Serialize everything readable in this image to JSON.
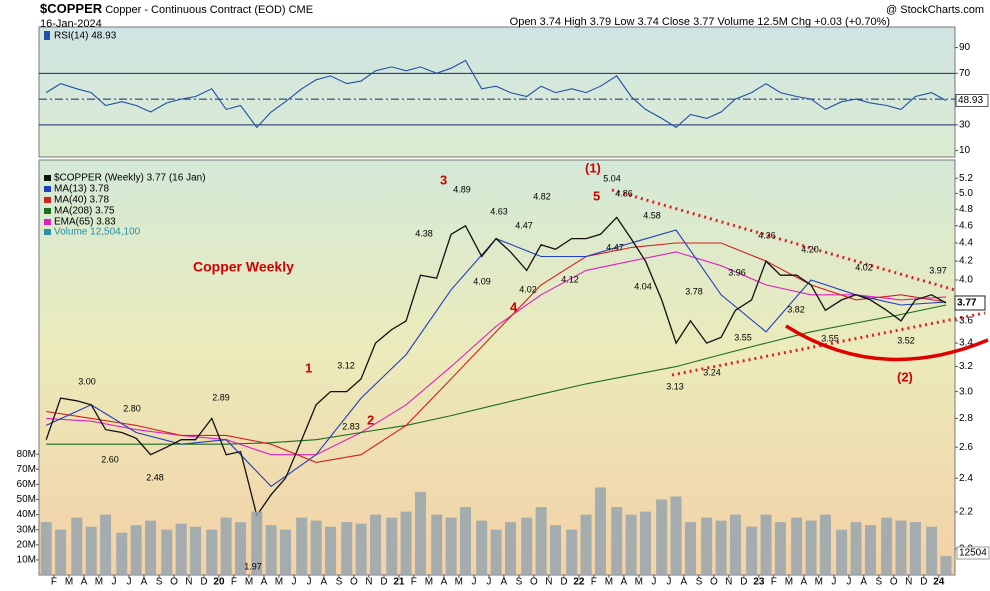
{
  "header": {
    "symbol": "$COPPER",
    "name": "Copper - Continuous Contract (EOD) CME",
    "date": "16-Jan-2024",
    "quote": "Open 3.74 High 3.79 Low 3.74 Close 3.77 Volume 12.5M Chg +0.03 (+0.70%)",
    "credit": "@ StockCharts.com"
  },
  "chart_data": [
    {
      "type": "line",
      "title": "RSI(14) 48.93",
      "last_label": "48.93",
      "xlim": [
        2019.0,
        2024.09
      ],
      "ylim": [
        5,
        106
      ],
      "yticks": [
        10,
        30,
        50,
        70,
        90
      ],
      "levels": [
        70,
        50,
        30
      ],
      "x": [
        2019.04,
        2019.12,
        2019.21,
        2019.29,
        2019.37,
        2019.46,
        2019.54,
        2019.62,
        2019.71,
        2019.79,
        2019.87,
        2019.96,
        2020.04,
        2020.12,
        2020.21,
        2020.29,
        2020.37,
        2020.46,
        2020.54,
        2020.62,
        2020.71,
        2020.79,
        2020.87,
        2020.96,
        2021.04,
        2021.12,
        2021.21,
        2021.29,
        2021.37,
        2021.46,
        2021.54,
        2021.62,
        2021.71,
        2021.79,
        2021.87,
        2021.96,
        2022.04,
        2022.12,
        2022.21,
        2022.29,
        2022.37,
        2022.46,
        2022.54,
        2022.62,
        2022.71,
        2022.79,
        2022.87,
        2022.96,
        2023.04,
        2023.12,
        2023.21,
        2023.29,
        2023.37,
        2023.46,
        2023.54,
        2023.62,
        2023.71,
        2023.79,
        2023.87,
        2023.96,
        2024.04
      ],
      "series": [
        {
          "color": "#1f4fa8",
          "values": [
            55,
            62,
            58,
            55,
            45,
            48,
            45,
            40,
            47,
            50,
            52,
            58,
            42,
            45,
            28,
            40,
            48,
            58,
            65,
            68,
            62,
            64,
            72,
            75,
            72,
            75,
            70,
            74,
            80,
            58,
            60,
            55,
            52,
            60,
            55,
            58,
            55,
            60,
            68,
            52,
            42,
            35,
            28,
            38,
            35,
            40,
            50,
            55,
            62,
            55,
            52,
            50,
            42,
            48,
            50,
            47,
            45,
            42,
            52,
            55,
            48.93
          ]
        }
      ]
    },
    {
      "type": "line",
      "title": "Copper Weekly",
      "log_scale": true,
      "last_label": "3.77",
      "xlim": [
        2019.0,
        2024.09
      ],
      "ylim": [
        1.87,
        5.45
      ],
      "yticks": [
        {
          "value": 2,
          "label": "2.0"
        },
        2.2,
        2.4,
        2.6,
        2.8,
        {
          "value": 3,
          "label": "3.0"
        },
        3.2,
        3.4,
        3.6,
        3.8,
        {
          "value": 4,
          "label": "4.0"
        },
        4.2,
        4.4,
        4.6,
        4.8,
        {
          "value": 5,
          "label": "5.0"
        },
        5.2
      ],
      "series": [
        {
          "name": "$COPPER (Weekly) 3.77 (16 Jan)",
          "color": "#111111",
          "x": [
            2019.04,
            2019.12,
            2019.21,
            2019.29,
            2019.37,
            2019.46,
            2019.54,
            2019.62,
            2019.71,
            2019.79,
            2019.87,
            2019.96,
            2020.04,
            2020.12,
            2020.21,
            2020.29,
            2020.37,
            2020.46,
            2020.54,
            2020.62,
            2020.71,
            2020.79,
            2020.87,
            2020.96,
            2021.04,
            2021.12,
            2021.21,
            2021.29,
            2021.37,
            2021.46,
            2021.54,
            2021.62,
            2021.71,
            2021.79,
            2021.87,
            2021.96,
            2022.04,
            2022.12,
            2022.21,
            2022.29,
            2022.37,
            2022.46,
            2022.54,
            2022.62,
            2022.71,
            2022.79,
            2022.87,
            2022.96,
            2023.04,
            2023.12,
            2023.21,
            2023.29,
            2023.37,
            2023.46,
            2023.54,
            2023.62,
            2023.71,
            2023.79,
            2023.87,
            2023.96,
            2024.04
          ],
          "values": [
            2.65,
            2.95,
            2.93,
            2.9,
            2.72,
            2.7,
            2.66,
            2.55,
            2.6,
            2.65,
            2.65,
            2.8,
            2.55,
            2.57,
            2.18,
            2.3,
            2.4,
            2.65,
            2.9,
            3.0,
            3.0,
            3.1,
            3.4,
            3.52,
            3.6,
            4.05,
            4.02,
            4.5,
            4.6,
            4.25,
            4.45,
            4.3,
            4.1,
            4.38,
            4.33,
            4.45,
            4.45,
            4.5,
            4.7,
            4.45,
            4.2,
            3.8,
            3.4,
            3.6,
            3.4,
            3.45,
            3.7,
            3.8,
            4.2,
            4.05,
            4.05,
            3.95,
            3.7,
            3.8,
            3.85,
            3.8,
            3.7,
            3.6,
            3.8,
            3.85,
            3.77
          ]
        },
        {
          "name": "MA(13) 3.78",
          "color": "#1f3fbf",
          "x": [
            2019.04,
            2019.29,
            2019.54,
            2019.79,
            2020.04,
            2020.29,
            2020.54,
            2020.79,
            2021.04,
            2021.29,
            2021.54,
            2021.79,
            2022.04,
            2022.29,
            2022.54,
            2022.79,
            2023.04,
            2023.29,
            2023.54,
            2023.79,
            2024.04
          ],
          "values": [
            2.75,
            2.9,
            2.7,
            2.62,
            2.65,
            2.35,
            2.55,
            2.95,
            3.3,
            3.9,
            4.45,
            4.25,
            4.25,
            4.4,
            4.55,
            3.85,
            3.5,
            4.0,
            3.85,
            3.75,
            3.78
          ]
        },
        {
          "name": "MA(40) 3.78",
          "color": "#d42020",
          "x": [
            2019.04,
            2019.29,
            2019.54,
            2019.79,
            2020.04,
            2020.29,
            2020.54,
            2020.79,
            2021.04,
            2021.29,
            2021.54,
            2021.79,
            2022.04,
            2022.29,
            2022.54,
            2022.79,
            2023.04,
            2023.29,
            2023.54,
            2023.79,
            2024.04
          ],
          "values": [
            2.85,
            2.8,
            2.75,
            2.68,
            2.68,
            2.62,
            2.5,
            2.55,
            2.75,
            3.1,
            3.5,
            3.95,
            4.25,
            4.35,
            4.4,
            4.4,
            4.2,
            3.95,
            3.8,
            3.85,
            3.78
          ]
        },
        {
          "name": "MA(208) 3.75",
          "color": "#1c6e1c",
          "x": [
            2019.04,
            2019.29,
            2019.54,
            2019.79,
            2020.04,
            2020.29,
            2020.54,
            2020.79,
            2021.04,
            2021.29,
            2021.54,
            2021.79,
            2022.04,
            2022.29,
            2022.54,
            2022.79,
            2023.04,
            2023.29,
            2023.54,
            2023.79,
            2024.04
          ],
          "values": [
            2.62,
            2.62,
            2.62,
            2.62,
            2.62,
            2.63,
            2.65,
            2.7,
            2.75,
            2.82,
            2.9,
            2.98,
            3.06,
            3.13,
            3.2,
            3.3,
            3.4,
            3.5,
            3.58,
            3.66,
            3.75
          ]
        },
        {
          "name": "EMA(65) 3.83",
          "color": "#e020c0",
          "x": [
            2019.04,
            2019.29,
            2019.54,
            2019.79,
            2020.04,
            2020.29,
            2020.54,
            2020.79,
            2021.04,
            2021.29,
            2021.54,
            2021.79,
            2022.04,
            2022.29,
            2022.54,
            2022.79,
            2023.04,
            2023.29,
            2023.54,
            2023.79,
            2024.04
          ],
          "values": [
            2.8,
            2.78,
            2.72,
            2.68,
            2.65,
            2.55,
            2.55,
            2.7,
            2.9,
            3.2,
            3.55,
            3.85,
            4.1,
            4.2,
            4.3,
            4.15,
            3.95,
            3.85,
            3.85,
            3.8,
            3.83
          ]
        }
      ],
      "annotations": [
        "3.00",
        "2.80",
        "2.60",
        "2.48",
        "2.89",
        "1.97",
        "3.12",
        "2.83",
        "4.38",
        "4.89",
        "4.09",
        "4.63",
        "4.47",
        "4.02",
        "4.82",
        "4.12",
        "5.04",
        "4.86",
        "4.58",
        "4.47",
        "4.04",
        "3.78",
        "3.13",
        "3.24",
        "3.55",
        "3.96",
        "4.36",
        "4.20",
        "3.82",
        "3.55",
        "4.02",
        "3.52",
        "3.97"
      ],
      "waves": [
        "(1)",
        "5",
        "3",
        "4",
        "1",
        "2",
        "(2)"
      ]
    },
    {
      "type": "bar",
      "last_label": "12504",
      "xlim": [
        2019.0,
        2024.09
      ],
      "ylim": [
        0,
        100
      ],
      "yticks": [
        {
          "value": 10,
          "label": "10M"
        },
        {
          "value": 20,
          "label": "20M"
        },
        {
          "value": 30,
          "label": "30M"
        },
        {
          "value": 40,
          "label": "40M"
        },
        {
          "value": 50,
          "label": "50M"
        },
        {
          "value": 60,
          "label": "60M"
        },
        {
          "value": 70,
          "label": "70M"
        },
        {
          "value": 80,
          "label": "80M"
        }
      ],
      "xticks": [
        {
          "value": 2019.083,
          "label": "F"
        },
        {
          "value": 2019.167,
          "label": "M"
        },
        {
          "value": 2019.25,
          "label": "A"
        },
        {
          "value": 2019.333,
          "label": "M"
        },
        {
          "value": 2019.417,
          "label": "J"
        },
        {
          "value": 2019.5,
          "label": "J"
        },
        {
          "value": 2019.583,
          "label": "A"
        },
        {
          "value": 2019.667,
          "label": "S"
        },
        {
          "value": 2019.75,
          "label": "O"
        },
        {
          "value": 2019.833,
          "label": "N"
        },
        {
          "value": 2019.917,
          "label": "D"
        },
        {
          "value": 2020,
          "label": "20"
        },
        {
          "value": 2020.083,
          "label": "F"
        },
        {
          "value": 2020.167,
          "label": "M"
        },
        {
          "value": 2020.25,
          "label": "A"
        },
        {
          "value": 2020.333,
          "label": "M"
        },
        {
          "value": 2020.417,
          "label": "J"
        },
        {
          "value": 2020.5,
          "label": "J"
        },
        {
          "value": 2020.583,
          "label": "A"
        },
        {
          "value": 2020.667,
          "label": "S"
        },
        {
          "value": 2020.75,
          "label": "O"
        },
        {
          "value": 2020.833,
          "label": "N"
        },
        {
          "value": 2020.917,
          "label": "D"
        },
        {
          "value": 2021,
          "label": "21"
        },
        {
          "value": 2021.083,
          "label": "F"
        },
        {
          "value": 2021.167,
          "label": "M"
        },
        {
          "value": 2021.25,
          "label": "A"
        },
        {
          "value": 2021.333,
          "label": "M"
        },
        {
          "value": 2021.417,
          "label": "J"
        },
        {
          "value": 2021.5,
          "label": "J"
        },
        {
          "value": 2021.583,
          "label": "A"
        },
        {
          "value": 2021.667,
          "label": "S"
        },
        {
          "value": 2021.75,
          "label": "O"
        },
        {
          "value": 2021.833,
          "label": "N"
        },
        {
          "value": 2021.917,
          "label": "D"
        },
        {
          "value": 2022,
          "label": "22"
        },
        {
          "value": 2022.083,
          "label": "F"
        },
        {
          "value": 2022.167,
          "label": "M"
        },
        {
          "value": 2022.25,
          "label": "A"
        },
        {
          "value": 2022.333,
          "label": "M"
        },
        {
          "value": 2022.417,
          "label": "J"
        },
        {
          "value": 2022.5,
          "label": "J"
        },
        {
          "value": 2022.583,
          "label": "A"
        },
        {
          "value": 2022.667,
          "label": "S"
        },
        {
          "value": 2022.75,
          "label": "O"
        },
        {
          "value": 2022.833,
          "label": "N"
        },
        {
          "value": 2022.917,
          "label": "D"
        },
        {
          "value": 2023,
          "label": "23"
        },
        {
          "value": 2023.083,
          "label": "F"
        },
        {
          "value": 2023.167,
          "label": "M"
        },
        {
          "value": 2023.25,
          "label": "A"
        },
        {
          "value": 2023.333,
          "label": "M"
        },
        {
          "value": 2023.417,
          "label": "J"
        },
        {
          "value": 2023.5,
          "label": "J"
        },
        {
          "value": 2023.583,
          "label": "A"
        },
        {
          "value": 2023.667,
          "label": "S"
        },
        {
          "value": 2023.75,
          "label": "O"
        },
        {
          "value": 2023.833,
          "label": "N"
        },
        {
          "value": 2023.917,
          "label": "D"
        },
        {
          "value": 2024,
          "label": "24"
        }
      ],
      "x": [
        2019.04,
        2019.12,
        2019.21,
        2019.29,
        2019.37,
        2019.46,
        2019.54,
        2019.62,
        2019.71,
        2019.79,
        2019.87,
        2019.96,
        2020.04,
        2020.12,
        2020.21,
        2020.29,
        2020.37,
        2020.46,
        2020.54,
        2020.62,
        2020.71,
        2020.79,
        2020.87,
        2020.96,
        2021.04,
        2021.12,
        2021.21,
        2021.29,
        2021.37,
        2021.46,
        2021.54,
        2021.62,
        2021.71,
        2021.79,
        2021.87,
        2021.96,
        2022.04,
        2022.12,
        2022.21,
        2022.29,
        2022.37,
        2022.46,
        2022.54,
        2022.62,
        2022.71,
        2022.79,
        2022.87,
        2022.96,
        2023.04,
        2023.12,
        2023.21,
        2023.29,
        2023.37,
        2023.46,
        2023.54,
        2023.62,
        2023.71,
        2023.79,
        2023.87,
        2023.96,
        2024.04
      ],
      "series": [
        {
          "name": "Volume 12,504,100",
          "color": "#98a4ae",
          "values": [
            35,
            30,
            38,
            32,
            40,
            28,
            33,
            36,
            30,
            34,
            32,
            30,
            38,
            35,
            42,
            33,
            30,
            38,
            36,
            32,
            35,
            34,
            40,
            38,
            42,
            55,
            40,
            38,
            45,
            36,
            30,
            35,
            38,
            45,
            33,
            30,
            40,
            58,
            45,
            40,
            42,
            50,
            52,
            35,
            38,
            36,
            40,
            32,
            40,
            35,
            38,
            36,
            40,
            30,
            35,
            33,
            38,
            36,
            35,
            32,
            12.5
          ]
        }
      ]
    }
  ]
}
